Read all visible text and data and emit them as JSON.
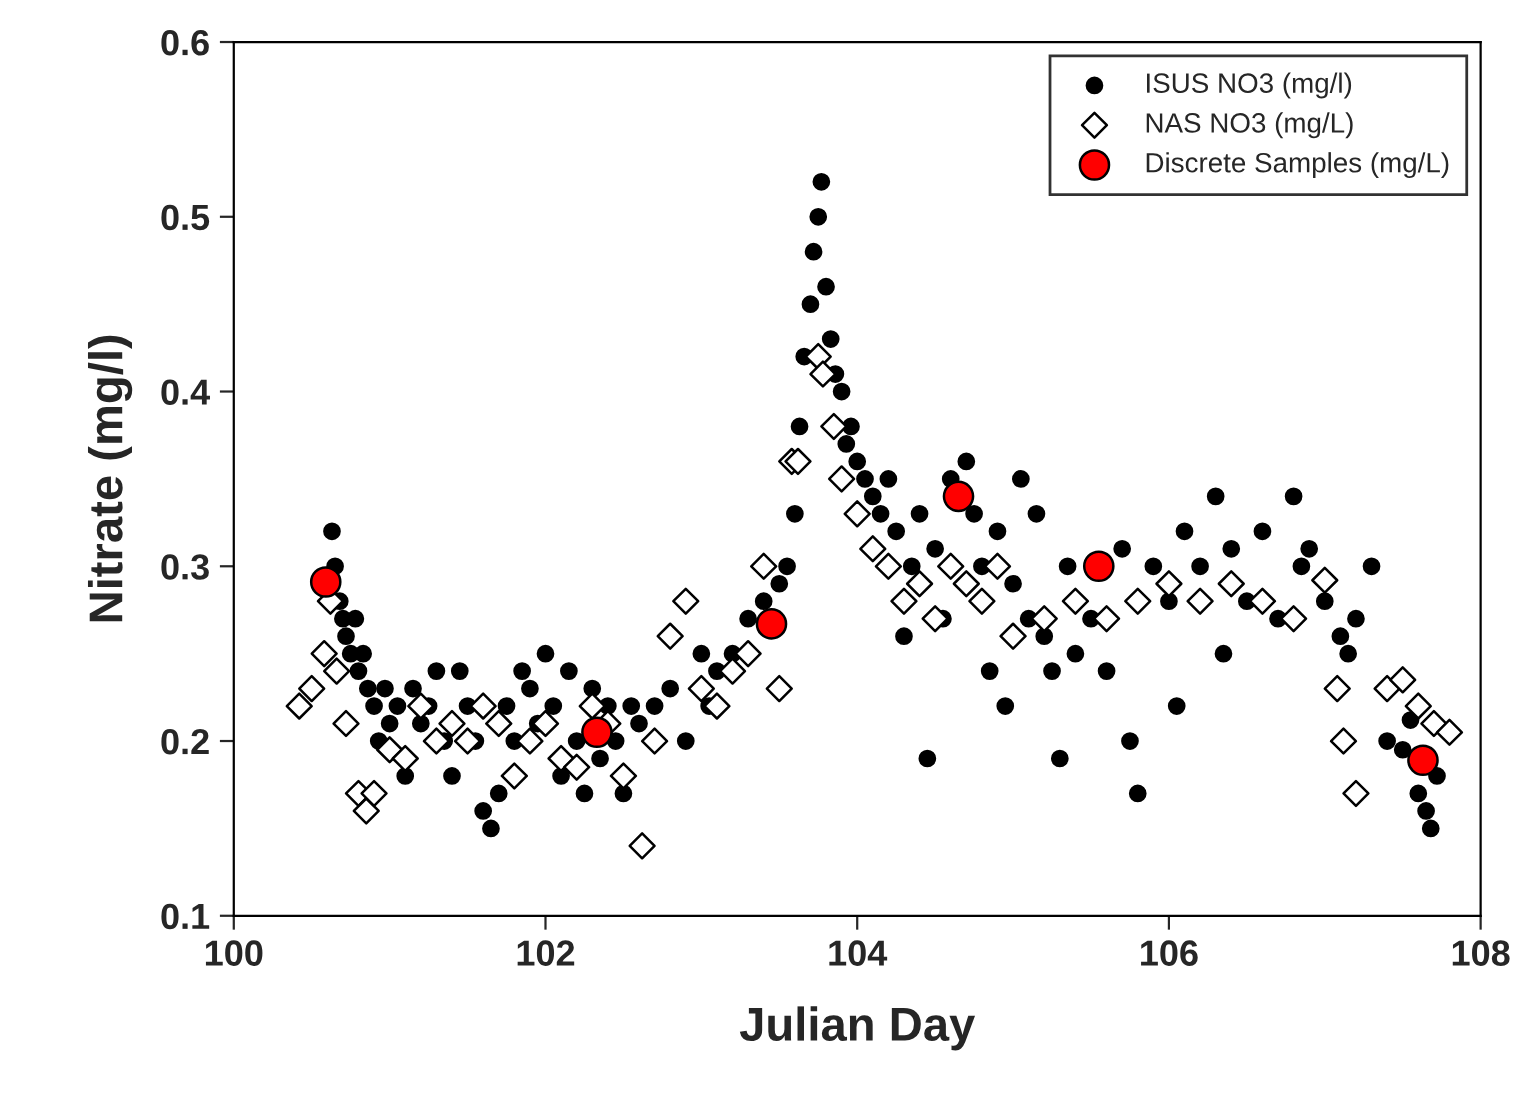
{
  "chart_data": {
    "type": "scatter",
    "xlabel": "Julian Day",
    "ylabel": "Nitrate (mg/l)",
    "xlim": [
      100,
      108
    ],
    "xticks": [
      100,
      102,
      104,
      106,
      108
    ],
    "ylim": [
      0.1,
      0.6
    ],
    "yticks": [
      0.1,
      0.2,
      0.3,
      0.4,
      0.5,
      0.6
    ],
    "grid": false,
    "legend": "top right",
    "series": [
      {
        "name": "ISUS NO3 (mg/l)",
        "color": "#000000",
        "marker": "circle",
        "x": [
          100.63,
          100.65,
          100.68,
          100.7,
          100.72,
          100.75,
          100.78,
          100.8,
          100.83,
          100.86,
          100.9,
          100.93,
          100.97,
          101.0,
          101.05,
          101.1,
          101.15,
          101.2,
          101.25,
          101.3,
          101.35,
          101.4,
          101.45,
          101.5,
          101.55,
          101.6,
          101.65,
          101.7,
          101.75,
          101.8,
          101.85,
          101.9,
          101.95,
          102.0,
          102.05,
          102.1,
          102.15,
          102.2,
          102.25,
          102.3,
          102.35,
          102.4,
          102.45,
          102.5,
          102.55,
          102.6,
          102.7,
          102.8,
          102.9,
          103.0,
          103.05,
          103.1,
          103.2,
          103.3,
          103.4,
          103.5,
          103.55,
          103.6,
          103.63,
          103.66,
          103.7,
          103.72,
          103.75,
          103.77,
          103.8,
          103.83,
          103.86,
          103.9,
          103.93,
          103.96,
          104.0,
          104.05,
          104.1,
          104.15,
          104.2,
          104.25,
          104.3,
          104.35,
          104.4,
          104.45,
          104.5,
          104.55,
          104.6,
          104.7,
          104.75,
          104.8,
          104.85,
          104.9,
          104.95,
          105.0,
          105.05,
          105.1,
          105.15,
          105.2,
          105.25,
          105.3,
          105.35,
          105.4,
          105.5,
          105.6,
          105.7,
          105.75,
          105.8,
          105.9,
          106.0,
          106.05,
          106.1,
          106.2,
          106.3,
          106.35,
          106.4,
          106.5,
          106.6,
          106.7,
          106.8,
          106.85,
          106.9,
          107.0,
          107.1,
          107.15,
          107.2,
          107.3,
          107.4,
          107.5,
          107.55,
          107.6,
          107.65,
          107.68,
          107.72
        ],
        "values": [
          0.32,
          0.3,
          0.28,
          0.27,
          0.26,
          0.25,
          0.27,
          0.24,
          0.25,
          0.23,
          0.22,
          0.2,
          0.23,
          0.21,
          0.22,
          0.18,
          0.23,
          0.21,
          0.22,
          0.24,
          0.2,
          0.18,
          0.24,
          0.22,
          0.2,
          0.16,
          0.15,
          0.17,
          0.22,
          0.2,
          0.24,
          0.23,
          0.21,
          0.25,
          0.22,
          0.18,
          0.24,
          0.2,
          0.17,
          0.23,
          0.19,
          0.22,
          0.2,
          0.17,
          0.22,
          0.21,
          0.22,
          0.23,
          0.2,
          0.25,
          0.22,
          0.24,
          0.25,
          0.27,
          0.28,
          0.29,
          0.3,
          0.33,
          0.38,
          0.42,
          0.45,
          0.48,
          0.5,
          0.52,
          0.46,
          0.43,
          0.41,
          0.4,
          0.37,
          0.38,
          0.36,
          0.35,
          0.34,
          0.33,
          0.35,
          0.32,
          0.26,
          0.3,
          0.33,
          0.19,
          0.31,
          0.27,
          0.35,
          0.36,
          0.33,
          0.3,
          0.24,
          0.32,
          0.22,
          0.29,
          0.35,
          0.27,
          0.33,
          0.26,
          0.24,
          0.19,
          0.3,
          0.25,
          0.27,
          0.24,
          0.31,
          0.2,
          0.17,
          0.3,
          0.28,
          0.22,
          0.32,
          0.3,
          0.34,
          0.25,
          0.31,
          0.28,
          0.32,
          0.27,
          0.34,
          0.3,
          0.31,
          0.28,
          0.26,
          0.25,
          0.27,
          0.3,
          0.2,
          0.195,
          0.212,
          0.17,
          0.16,
          0.15,
          0.18
        ]
      },
      {
        "name": "NAS NO3 (mg/L)",
        "color": "#ffffff",
        "marker": "diamond",
        "x": [
          100.42,
          100.5,
          100.58,
          100.62,
          100.66,
          100.72,
          100.8,
          100.85,
          100.9,
          101.0,
          101.1,
          101.2,
          101.3,
          101.4,
          101.5,
          101.6,
          101.7,
          101.8,
          101.9,
          102.0,
          102.1,
          102.2,
          102.3,
          102.4,
          102.5,
          102.62,
          102.7,
          102.8,
          102.9,
          103.0,
          103.1,
          103.2,
          103.3,
          103.4,
          103.5,
          103.58,
          103.62,
          103.75,
          103.78,
          103.85,
          103.9,
          104.0,
          104.1,
          104.2,
          104.3,
          104.4,
          104.5,
          104.6,
          104.7,
          104.8,
          104.9,
          105.0,
          105.2,
          105.4,
          105.6,
          105.8,
          106.0,
          106.2,
          106.4,
          106.6,
          106.8,
          107.0,
          107.08,
          107.12,
          107.2,
          107.4,
          107.5,
          107.6,
          107.7,
          107.8
        ],
        "values": [
          0.22,
          0.23,
          0.25,
          0.28,
          0.24,
          0.21,
          0.17,
          0.16,
          0.17,
          0.195,
          0.19,
          0.22,
          0.2,
          0.21,
          0.2,
          0.22,
          0.21,
          0.18,
          0.2,
          0.21,
          0.19,
          0.185,
          0.22,
          0.21,
          0.18,
          0.14,
          0.2,
          0.26,
          0.28,
          0.23,
          0.22,
          0.24,
          0.25,
          0.3,
          0.23,
          0.36,
          0.36,
          0.42,
          0.41,
          0.38,
          0.35,
          0.33,
          0.31,
          0.3,
          0.28,
          0.29,
          0.27,
          0.3,
          0.29,
          0.28,
          0.3,
          0.26,
          0.27,
          0.28,
          0.27,
          0.28,
          0.29,
          0.28,
          0.29,
          0.28,
          0.27,
          0.292,
          0.23,
          0.2,
          0.17,
          0.23,
          0.235,
          0.22,
          0.21,
          0.205
        ]
      },
      {
        "name": "Discrete Samples (mg/L)",
        "color": "#ff0000",
        "marker": "circle",
        "x": [
          100.59,
          102.33,
          103.45,
          104.65,
          105.55,
          107.63
        ],
        "values": [
          0.291,
          0.205,
          0.267,
          0.34,
          0.3,
          0.189
        ]
      }
    ]
  }
}
